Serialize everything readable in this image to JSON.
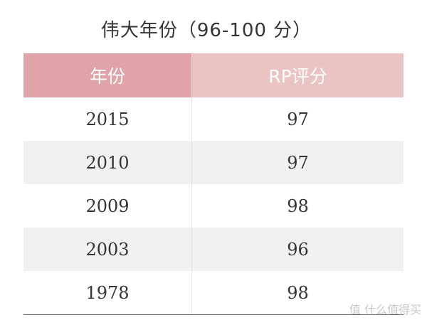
{
  "title": "伟大年份（96-100 分）",
  "table": {
    "header": [
      "年份",
      "RP评分"
    ],
    "rows": [
      [
        "2015",
        "97"
      ],
      [
        "2010",
        "97"
      ],
      [
        "2009",
        "98"
      ],
      [
        "2003",
        "96"
      ],
      [
        "1978",
        "98"
      ]
    ]
  },
  "watermark": "值 什么值得买"
}
